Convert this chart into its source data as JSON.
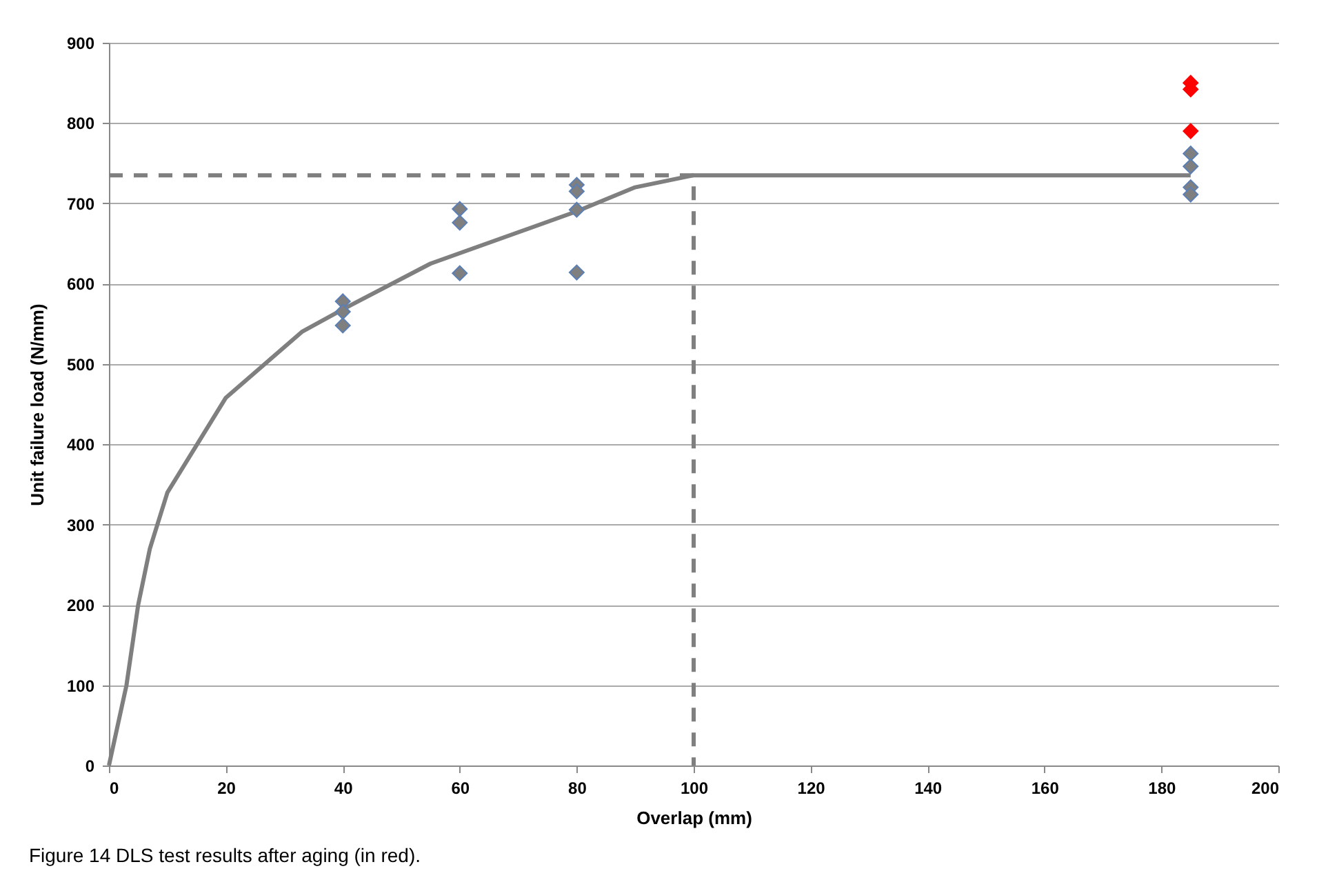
{
  "chart_data": {
    "type": "scatter",
    "xlabel": "Overlap (mm)",
    "ylabel": "Unit failure load (N/mm)",
    "annotations": [
      "Figure 14 DLS test results after aging (in red)."
    ],
    "xlim": [
      0,
      200
    ],
    "xticks": [
      0,
      20,
      40,
      60,
      80,
      100,
      120,
      140,
      160,
      180,
      200
    ],
    "ylim": [
      0,
      900
    ],
    "yticks": [
      0,
      100,
      200,
      300,
      400,
      500,
      600,
      700,
      800,
      900
    ],
    "grid": "y",
    "legend": false,
    "marker": "diamond",
    "series": [
      {
        "type": "line",
        "color": "#7f7f7f",
        "line_style": "solid",
        "marker": "none",
        "x": [
          0,
          3,
          5,
          7,
          10,
          20,
          33,
          40,
          55,
          80,
          90,
          100,
          185
        ],
        "values": [
          0,
          100,
          200,
          270,
          340,
          458,
          540,
          568,
          625,
          690,
          720,
          735,
          735
        ]
      },
      {
        "type": "line",
        "color": "#7f7f7f",
        "line_style": "dashed",
        "marker": "none",
        "x": [
          0,
          100,
          100
        ],
        "values": [
          735,
          735,
          0
        ]
      },
      {
        "type": "scatter",
        "color": "#7f7f7f",
        "x": [
          40,
          40,
          40,
          60,
          60,
          60,
          80,
          80,
          80,
          80,
          185,
          185,
          185,
          185
        ],
        "values": [
          578,
          565,
          548,
          693,
          676,
          613,
          723,
          715,
          692,
          614,
          762,
          746,
          720,
          711
        ]
      },
      {
        "type": "scatter",
        "color": "#ff0000",
        "x": [
          185,
          185,
          185
        ],
        "values": [
          850,
          842,
          790
        ]
      }
    ]
  }
}
